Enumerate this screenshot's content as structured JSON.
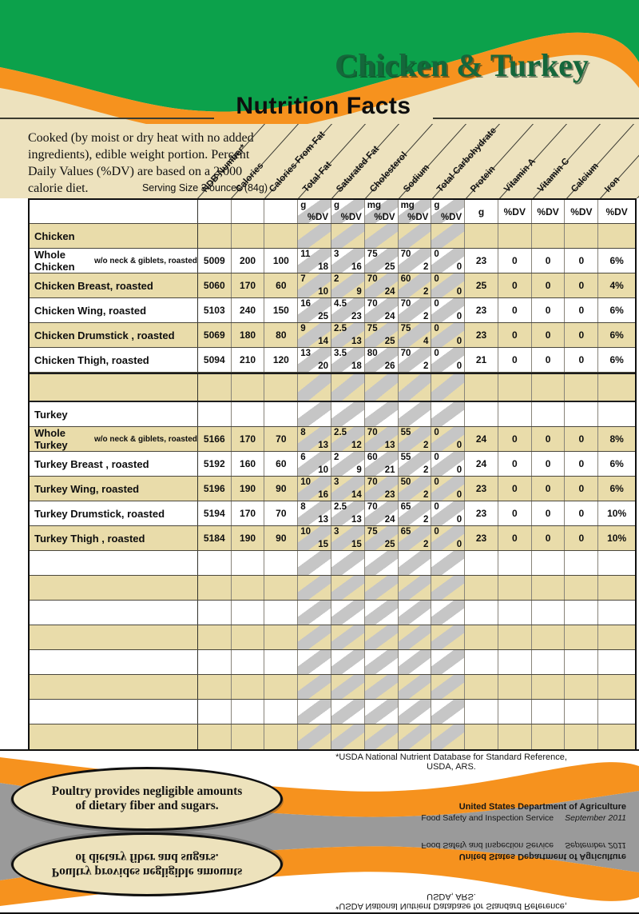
{
  "header": {
    "title": "Chicken & Turkey",
    "subtitle": "Nutrition Facts",
    "intro": "Cooked (by moist or dry heat with no added ingredients), edible weight portion.  Percent Daily Values (%DV) are based on a 2,000 calorie diet.",
    "serving": "Serving Size 3 ounces (84g)"
  },
  "table": {
    "columns": [
      "NDB Number*",
      "Calories",
      "Calories From Fat",
      "Total Fat",
      "Saturated Fat",
      "Cholesterol",
      "Sodium",
      "Total Carbohydrate",
      "Protein",
      "Vitamin A",
      "Vitamin C",
      "Calcium",
      "Iron"
    ],
    "units": {
      "split_units": [
        "g",
        "g",
        "mg",
        "mg",
        "g"
      ],
      "dv": "%DV",
      "protein_unit": "g",
      "dv_columns": [
        "%DV",
        "%DV",
        "%DV",
        "%DV"
      ]
    },
    "rows": [
      {
        "kind": "section",
        "shade": "tan",
        "label": "Chicken"
      },
      {
        "kind": "data",
        "shade": "white",
        "label": "Whole Chicken",
        "sub": "w/o neck & giblets, roasted",
        "values": [
          "5009",
          "200",
          "100",
          [
            "11",
            "18"
          ],
          [
            "3",
            "16"
          ],
          [
            "75",
            "25"
          ],
          [
            "70",
            "2"
          ],
          [
            "0",
            "0"
          ],
          "23",
          "0",
          "0",
          "0",
          "6%"
        ]
      },
      {
        "kind": "data",
        "shade": "tan",
        "label": "Chicken Breast, roasted",
        "values": [
          "5060",
          "170",
          "60",
          [
            "7",
            "10"
          ],
          [
            "2",
            "9"
          ],
          [
            "70",
            "24"
          ],
          [
            "60",
            "2"
          ],
          [
            "0",
            "0"
          ],
          "25",
          "0",
          "0",
          "0",
          "4%"
        ]
      },
      {
        "kind": "data",
        "shade": "white",
        "label": "Chicken Wing, roasted",
        "values": [
          "5103",
          "240",
          "150",
          [
            "16",
            "25"
          ],
          [
            "4.5",
            "23"
          ],
          [
            "70",
            "24"
          ],
          [
            "70",
            "2"
          ],
          [
            "0",
            "0"
          ],
          "23",
          "0",
          "0",
          "0",
          "6%"
        ]
      },
      {
        "kind": "data",
        "shade": "tan",
        "label": "Chicken Drumstick , roasted",
        "values": [
          "5069",
          "180",
          "80",
          [
            "9",
            "14"
          ],
          [
            "2.5",
            "13"
          ],
          [
            "75",
            "25"
          ],
          [
            "75",
            "4"
          ],
          [
            "0",
            "0"
          ],
          "23",
          "0",
          "0",
          "0",
          "6%"
        ]
      },
      {
        "kind": "data",
        "shade": "white",
        "label": "Chicken Thigh, roasted",
        "values": [
          "5094",
          "210",
          "120",
          [
            "13",
            "20"
          ],
          [
            "3.5",
            "18"
          ],
          [
            "80",
            "26"
          ],
          [
            "70",
            "2"
          ],
          [
            "0",
            "0"
          ],
          "21",
          "0",
          "0",
          "0",
          "6%"
        ]
      },
      {
        "kind": "spacer",
        "shade": "tan"
      },
      {
        "kind": "section",
        "shade": "white",
        "label": "Turkey"
      },
      {
        "kind": "data",
        "shade": "tan",
        "label": "Whole Turkey",
        "sub": "w/o neck & giblets, roasted",
        "values": [
          "5166",
          "170",
          "70",
          [
            "8",
            "13"
          ],
          [
            "2.5",
            "12"
          ],
          [
            "70",
            "13"
          ],
          [
            "55",
            "2"
          ],
          [
            "0",
            "0"
          ],
          "24",
          "0",
          "0",
          "0",
          "8%"
        ]
      },
      {
        "kind": "data",
        "shade": "white",
        "label": "Turkey Breast , roasted",
        "values": [
          "5192",
          "160",
          "60",
          [
            "6",
            "10"
          ],
          [
            "2",
            "9"
          ],
          [
            "60",
            "21"
          ],
          [
            "55",
            "2"
          ],
          [
            "0",
            "0"
          ],
          "24",
          "0",
          "0",
          "0",
          "6%"
        ]
      },
      {
        "kind": "data",
        "shade": "tan",
        "label": "Turkey Wing, roasted",
        "values": [
          "5196",
          "190",
          "90",
          [
            "10",
            "16"
          ],
          [
            "3",
            "14"
          ],
          [
            "70",
            "23"
          ],
          [
            "50",
            "2"
          ],
          [
            "0",
            "0"
          ],
          "23",
          "0",
          "0",
          "0",
          "6%"
        ]
      },
      {
        "kind": "data",
        "shade": "white",
        "label": "Turkey Drumstick, roasted",
        "values": [
          "5194",
          "170",
          "70",
          [
            "8",
            "13"
          ],
          [
            "2.5",
            "13"
          ],
          [
            "70",
            "24"
          ],
          [
            "65",
            "2"
          ],
          [
            "0",
            "0"
          ],
          "23",
          "0",
          "0",
          "0",
          "10%"
        ]
      },
      {
        "kind": "data",
        "shade": "tan",
        "label": "Turkey Thigh , roasted",
        "values": [
          "5184",
          "190",
          "90",
          [
            "10",
            "15"
          ],
          [
            "3",
            "15"
          ],
          [
            "75",
            "25"
          ],
          [
            "65",
            "2"
          ],
          [
            "0",
            "0"
          ],
          "23",
          "0",
          "0",
          "0",
          "10%"
        ]
      },
      {
        "kind": "empty",
        "shade": "white"
      },
      {
        "kind": "empty",
        "shade": "tan"
      },
      {
        "kind": "empty",
        "shade": "white"
      },
      {
        "kind": "empty",
        "shade": "tan"
      },
      {
        "kind": "empty",
        "shade": "white"
      },
      {
        "kind": "empty",
        "shade": "tan"
      },
      {
        "kind": "empty",
        "shade": "white"
      },
      {
        "kind": "empty",
        "shade": "tan"
      }
    ]
  },
  "footnote": "*USDA National Nutrient Database for Standard Reference, USDA, ARS.",
  "footer": {
    "note_line1": "Poultry provides negligible amounts",
    "note_line2": "of dietary fiber and sugars.",
    "agency": "United States Department of Agriculture",
    "service": "Food Safety and Inspection Service",
    "date": "September 2011"
  },
  "colors": {
    "green": "#0CA14B",
    "title_green": "#15673B",
    "orange": "#F6921E",
    "cream": "#EDE2BE",
    "row_tan": "#E9DCAA",
    "stripe_gray": "#C6C6C6",
    "footer_gray": "#9A9A9A"
  }
}
